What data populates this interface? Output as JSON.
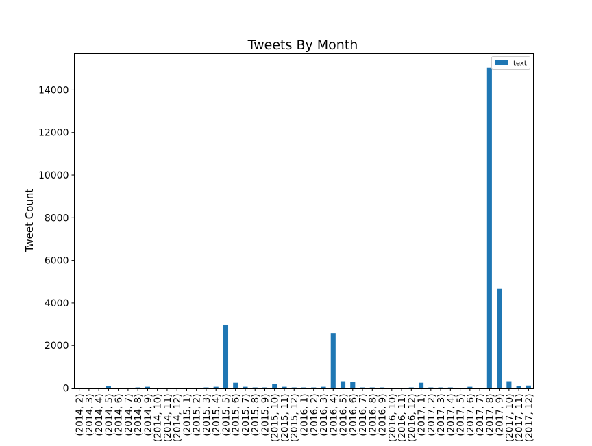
{
  "chart_data": {
    "type": "bar",
    "title": "Tweets By Month",
    "xlabel": "",
    "ylabel": "Tweet Count",
    "ylim": [
      0,
      15700
    ],
    "yticks": [
      0,
      2000,
      4000,
      6000,
      8000,
      10000,
      12000,
      14000
    ],
    "grid": false,
    "legend_position": "top-right",
    "categories": [
      "(2014, 2)",
      "(2014, 3)",
      "(2014, 4)",
      "(2014, 5)",
      "(2014, 6)",
      "(2014, 7)",
      "(2014, 8)",
      "(2014, 9)",
      "(2014, 10)",
      "(2014, 11)",
      "(2014, 12)",
      "(2015, 1)",
      "(2015, 2)",
      "(2015, 3)",
      "(2015, 4)",
      "(2015, 5)",
      "(2015, 6)",
      "(2015, 7)",
      "(2015, 8)",
      "(2015, 9)",
      "(2015, 10)",
      "(2015, 11)",
      "(2015, 12)",
      "(2016, 1)",
      "(2016, 2)",
      "(2016, 3)",
      "(2016, 4)",
      "(2016, 5)",
      "(2016, 6)",
      "(2016, 7)",
      "(2016, 8)",
      "(2016, 9)",
      "(2016, 10)",
      "(2016, 11)",
      "(2016, 12)",
      "(2017, 1)",
      "(2017, 2)",
      "(2017, 3)",
      "(2017, 4)",
      "(2017, 5)",
      "(2017, 6)",
      "(2017, 7)",
      "(2017, 8)",
      "(2017, 9)",
      "(2017, 10)",
      "(2017, 11)",
      "(2017, 12)"
    ],
    "series": [
      {
        "name": "text",
        "color": "#1f77b4",
        "values": [
          5,
          3,
          5,
          90,
          10,
          5,
          30,
          60,
          10,
          5,
          5,
          5,
          5,
          30,
          60,
          2970,
          250,
          60,
          30,
          30,
          180,
          60,
          30,
          30,
          30,
          60,
          2580,
          320,
          290,
          30,
          30,
          30,
          10,
          5,
          30,
          250,
          30,
          30,
          30,
          10,
          60,
          10,
          15050,
          4680,
          320,
          90,
          120
        ]
      }
    ]
  }
}
